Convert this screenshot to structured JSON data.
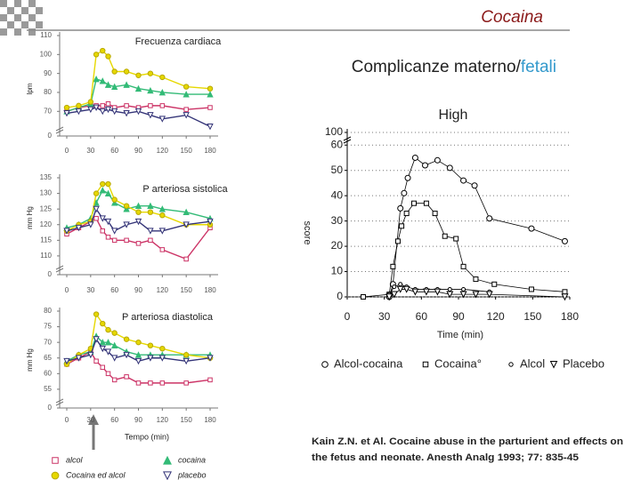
{
  "slide": {
    "title": "Cocaina",
    "subtitle": [
      "Complicanze materno/",
      "fetali"
    ],
    "citation": [
      "Kain Z.N. et Al. Cocaine abuse in the parturient and effects on",
      "the fetus and neonate. Anesth Analg 1993; 77: 835-45"
    ]
  },
  "chart_data": [
    {
      "type": "line",
      "title": "Frecuenza cardiaca",
      "y_label": "lpm",
      "x": [
        0,
        15,
        30,
        37,
        45,
        52,
        60,
        75,
        90,
        105,
        120,
        150,
        180
      ],
      "xlim": [
        0,
        180
      ],
      "xticks": [
        0,
        30,
        60,
        90,
        120,
        150,
        180
      ],
      "ylim": [
        57,
        110
      ],
      "yticks": [
        0,
        70,
        80,
        90,
        100,
        110
      ],
      "axis_break": true,
      "series": [
        {
          "color": "#cc3366",
          "marker": "square",
          "filled": false,
          "values": [
            70,
            72,
            73,
            73,
            73,
            74,
            72,
            73,
            72,
            73,
            73,
            71,
            72
          ]
        },
        {
          "color": "#33bb77",
          "marker": "triangle",
          "filled": true,
          "values": [
            70,
            72,
            74,
            87,
            86,
            84,
            83,
            84,
            82,
            81,
            80,
            79,
            79
          ]
        },
        {
          "color": "#e6d800",
          "marker": "circle",
          "filled": true,
          "values": [
            72,
            73,
            75,
            100,
            102,
            99,
            91,
            91,
            89,
            90,
            88,
            83,
            82
          ]
        },
        {
          "color": "#333377",
          "marker": "triangle-down",
          "filled": false,
          "values": [
            69,
            70,
            71,
            72,
            70,
            71,
            70,
            69,
            70,
            68,
            66,
            68,
            62
          ]
        }
      ]
    },
    {
      "type": "line",
      "title": "P arteriosa sistolica",
      "y_label": "mm Hg",
      "x": [
        0,
        15,
        30,
        37,
        45,
        52,
        60,
        75,
        90,
        105,
        120,
        150,
        180
      ],
      "xlim": [
        0,
        180
      ],
      "xticks": [
        0,
        30,
        60,
        90,
        120,
        150,
        180
      ],
      "ylim": [
        104,
        135
      ],
      "yticks": [
        0,
        110,
        115,
        120,
        125,
        130,
        135
      ],
      "axis_break": true,
      "series": [
        {
          "color": "#cc3366",
          "marker": "square",
          "filled": false,
          "values": [
            117,
            119,
            121,
            122,
            118,
            116,
            115,
            115,
            114,
            115,
            112,
            109,
            119
          ]
        },
        {
          "color": "#33bb77",
          "marker": "triangle",
          "filled": true,
          "values": [
            119,
            120,
            122,
            127,
            131,
            130,
            127,
            125,
            126,
            126,
            125,
            124,
            122
          ]
        },
        {
          "color": "#e6d800",
          "marker": "circle",
          "filled": true,
          "values": [
            118,
            120,
            121,
            130,
            133,
            133,
            128,
            126,
            124,
            124,
            123,
            120,
            120
          ]
        },
        {
          "color": "#333377",
          "marker": "triangle-down",
          "filled": false,
          "values": [
            118,
            119,
            120,
            125,
            122,
            121,
            118,
            120,
            121,
            118,
            118,
            120,
            121
          ]
        }
      ]
    },
    {
      "type": "line",
      "title": "P arteriosa  diastolica",
      "y_label": "mm Hg",
      "x_label": "Tempo (min)",
      "x": [
        0,
        15,
        30,
        37,
        45,
        52,
        60,
        75,
        90,
        105,
        120,
        150,
        180
      ],
      "xlim": [
        0,
        180
      ],
      "xticks": [
        0,
        30,
        60,
        90,
        120,
        150,
        180
      ],
      "ylim": [
        49,
        80
      ],
      "yticks": [
        0,
        55,
        60,
        65,
        70,
        75,
        80
      ],
      "axis_break": true,
      "legend": "bottom",
      "series": [
        {
          "name": "alcol",
          "color": "#cc3366",
          "marker": "square",
          "filled": false,
          "values": [
            63,
            65,
            67,
            64,
            62,
            60,
            58,
            59,
            57,
            57,
            57,
            57,
            58
          ]
        },
        {
          "name": "cocaina",
          "color": "#33bb77",
          "marker": "triangle",
          "filled": true,
          "values": [
            64,
            66,
            67,
            72,
            70,
            70,
            69,
            67,
            66,
            66,
            66,
            66,
            66
          ]
        },
        {
          "name": "Cocaina ed alcol",
          "color": "#e6d800",
          "marker": "circle",
          "filled": true,
          "values": [
            63,
            66,
            68,
            79,
            76,
            74,
            73,
            71,
            70,
            69,
            68,
            66,
            65
          ]
        },
        {
          "name": "placebo",
          "color": "#333377",
          "marker": "triangle-down",
          "filled": false,
          "values": [
            64,
            65,
            66,
            71,
            68,
            67,
            65,
            66,
            64,
            65,
            65,
            64,
            65
          ]
        }
      ]
    },
    {
      "type": "line",
      "title": "High",
      "y_label": "score",
      "x_label": "Time (min)",
      "xlim": [
        0,
        180
      ],
      "xticks": [
        0,
        30,
        60,
        90,
        120,
        150,
        180
      ],
      "ylim": [
        0,
        65
      ],
      "yticks": [
        0,
        10,
        20,
        30,
        40,
        50,
        60,
        100
      ],
      "axis_break": true,
      "grid": true,
      "legend": "bottom",
      "series": [
        {
          "name": "Alcol-cocaina",
          "color": "#000000",
          "marker": "circle",
          "filled": false,
          "x": [
            34,
            37,
            43,
            46,
            49,
            55,
            63,
            73,
            83,
            94,
            103,
            115,
            149,
            176
          ],
          "values": [
            0,
            5,
            35,
            41,
            47,
            55,
            52,
            54,
            51,
            46,
            44,
            31,
            27,
            22
          ]
        },
        {
          "name": "Cocaina°",
          "color": "#000000",
          "marker": "square",
          "filled": false,
          "x": [
            13,
            34,
            37,
            41,
            44,
            48,
            54,
            64,
            71,
            79,
            88,
            94,
            104,
            119,
            149,
            176
          ],
          "values": [
            0,
            1,
            12,
            22,
            28,
            33,
            37,
            37,
            33,
            24,
            23,
            12,
            7,
            5,
            3,
            2
          ]
        },
        {
          "name": "Alcol",
          "color": "#000000",
          "marker": "dot",
          "filled": false,
          "x": [
            34,
            38,
            43,
            48,
            55,
            64,
            73,
            83,
            94,
            115
          ],
          "values": [
            1,
            4,
            5,
            4,
            3,
            3,
            3,
            3,
            3,
            2
          ]
        },
        {
          "name": "Placebo",
          "color": "#000000",
          "marker": "triangle-down",
          "filled": false,
          "x": [
            34,
            38,
            43,
            48,
            55,
            64,
            73,
            83,
            94,
            104,
            115,
            176
          ],
          "values": [
            0,
            1,
            3,
            3,
            2,
            2,
            2,
            1,
            1,
            1,
            1,
            0
          ]
        }
      ]
    }
  ]
}
